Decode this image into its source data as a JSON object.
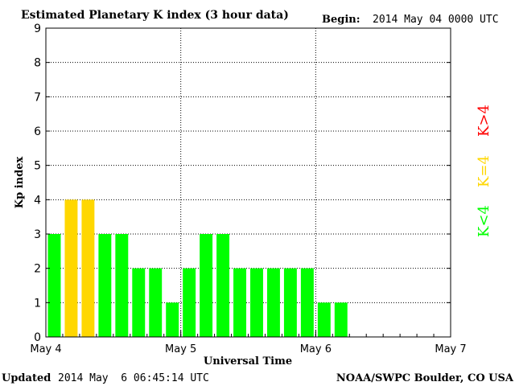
{
  "chart_data": {
    "type": "bar",
    "title": "Estimated Planetary K index (3 hour data)",
    "begin_label": "Begin:",
    "begin_value": "2014 May 04 0000 UTC",
    "ylabel": "Kp index",
    "xlabel": "Universal Time",
    "ylim": [
      0,
      9
    ],
    "yticks": [
      "0",
      "1",
      "2",
      "3",
      "4",
      "5",
      "6",
      "7",
      "8",
      "9"
    ],
    "xlim_intervals": 24,
    "xticks": [
      {
        "label": "May 4",
        "interval": 0
      },
      {
        "label": "May 5",
        "interval": 8
      },
      {
        "label": "May 6",
        "interval": 16
      },
      {
        "label": "May 7",
        "interval": 24
      }
    ],
    "grid": true,
    "values": [
      3,
      4,
      4,
      3,
      3,
      2,
      2,
      1,
      2,
      3,
      3,
      2,
      2,
      2,
      2,
      2,
      1,
      1
    ],
    "legend": [
      {
        "label": "K<4",
        "color": "#00ff00"
      },
      {
        "label": "K=4",
        "color": "#ffd700"
      },
      {
        "label": "K>4",
        "color": "#ff0000"
      }
    ],
    "colors": {
      "below": "#00ff00",
      "equal": "#ffd700",
      "above": "#ff0000"
    }
  },
  "footer": {
    "updated_label": "Updated",
    "updated_value": "2014 May  6 06:45:14 UTC",
    "credit": "NOAA/SWPC Boulder, CO USA"
  }
}
